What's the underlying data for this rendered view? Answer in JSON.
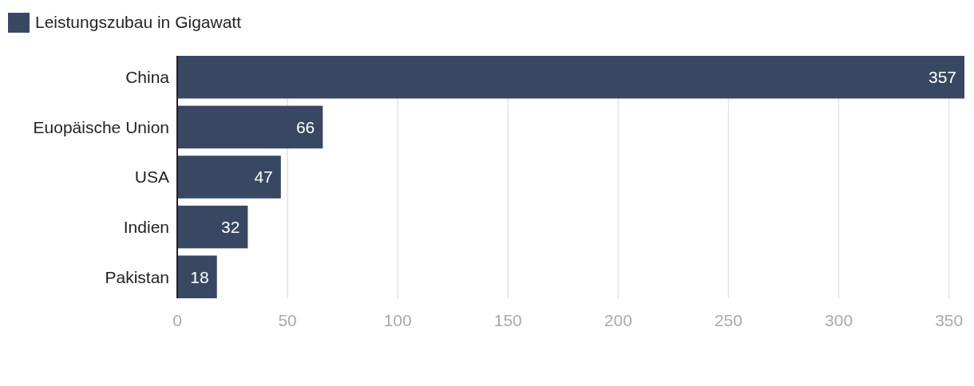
{
  "chart_data": {
    "type": "bar",
    "orientation": "horizontal",
    "categories": [
      "China",
      "Euopäische Union",
      "USA",
      "Indien",
      "Pakistan"
    ],
    "series": [
      {
        "name": "Leistungszubau in Gigawatt",
        "color": "#394862",
        "values": [
          357,
          66,
          47,
          32,
          18
        ]
      }
    ],
    "xlim": [
      0,
      357
    ],
    "xticks": [
      0,
      50,
      100,
      150,
      200,
      250,
      300,
      350
    ],
    "grid": "x",
    "legend": "top left",
    "data_labels": true
  }
}
